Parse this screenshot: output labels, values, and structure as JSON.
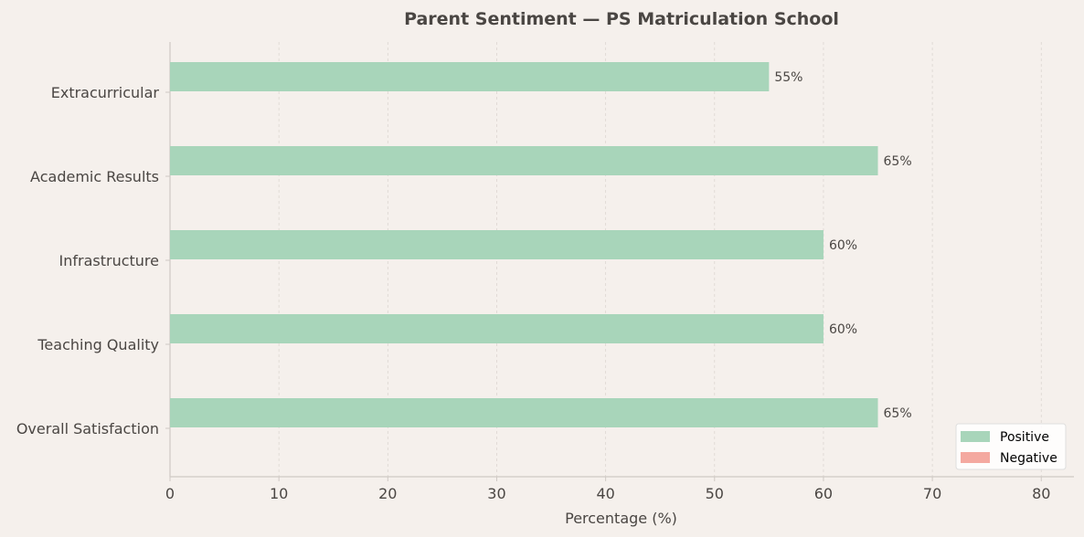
{
  "chart_data": {
    "type": "bar",
    "orientation": "horizontal",
    "title": "Parent Sentiment — PS Matriculation School",
    "xlabel": "Percentage (%)",
    "ylabel": "",
    "xlim": [
      0,
      83
    ],
    "x_ticks": [
      0,
      10,
      20,
      30,
      40,
      50,
      60,
      70,
      80
    ],
    "categories": [
      "Overall Satisfaction",
      "Teaching Quality",
      "Infrastructure",
      "Academic Results",
      "Extracurricular"
    ],
    "series": [
      {
        "name": "Positive",
        "values": [
          65,
          60,
          60,
          65,
          55
        ],
        "color": "#a8d5ba"
      },
      {
        "name": "Negative",
        "values": [
          null,
          null,
          null,
          null,
          null
        ],
        "color": "#f4a9a0"
      }
    ],
    "data_labels": [
      "65%",
      "60%",
      "60%",
      "65%",
      "55%"
    ],
    "grid": "vertical dashed",
    "legend_position": "bottom-right"
  }
}
